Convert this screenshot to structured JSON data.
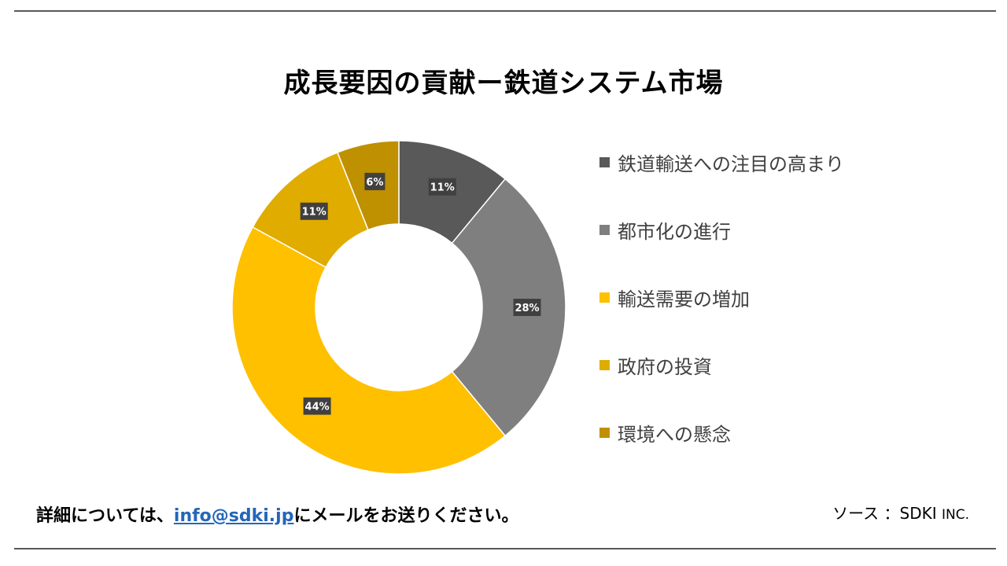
{
  "chart_data": {
    "type": "pie",
    "title": "成長要因の貢献ー鉄道システム市場",
    "categories": [
      "鉄道輸送への注目の高まり",
      "都市化の進行",
      "輸送需要の増加",
      "政府の投資",
      "環境への懸念"
    ],
    "values": [
      11,
      28,
      44,
      11,
      6
    ],
    "labels": [
      "11%",
      "28%",
      "44%",
      "11%",
      "6%"
    ],
    "colors": [
      "#595959",
      "#7f7f7f",
      "#ffc000",
      "#e0ac00",
      "#bf9000"
    ],
    "legend_position": "right",
    "style": "donut"
  },
  "footer": {
    "contact_prefix": "詳細については、",
    "email": "info@sdki.jp",
    "contact_suffix": "にメールをお送りください。",
    "source_label": "ソース ：SDKI",
    "source_inc": "INC."
  }
}
